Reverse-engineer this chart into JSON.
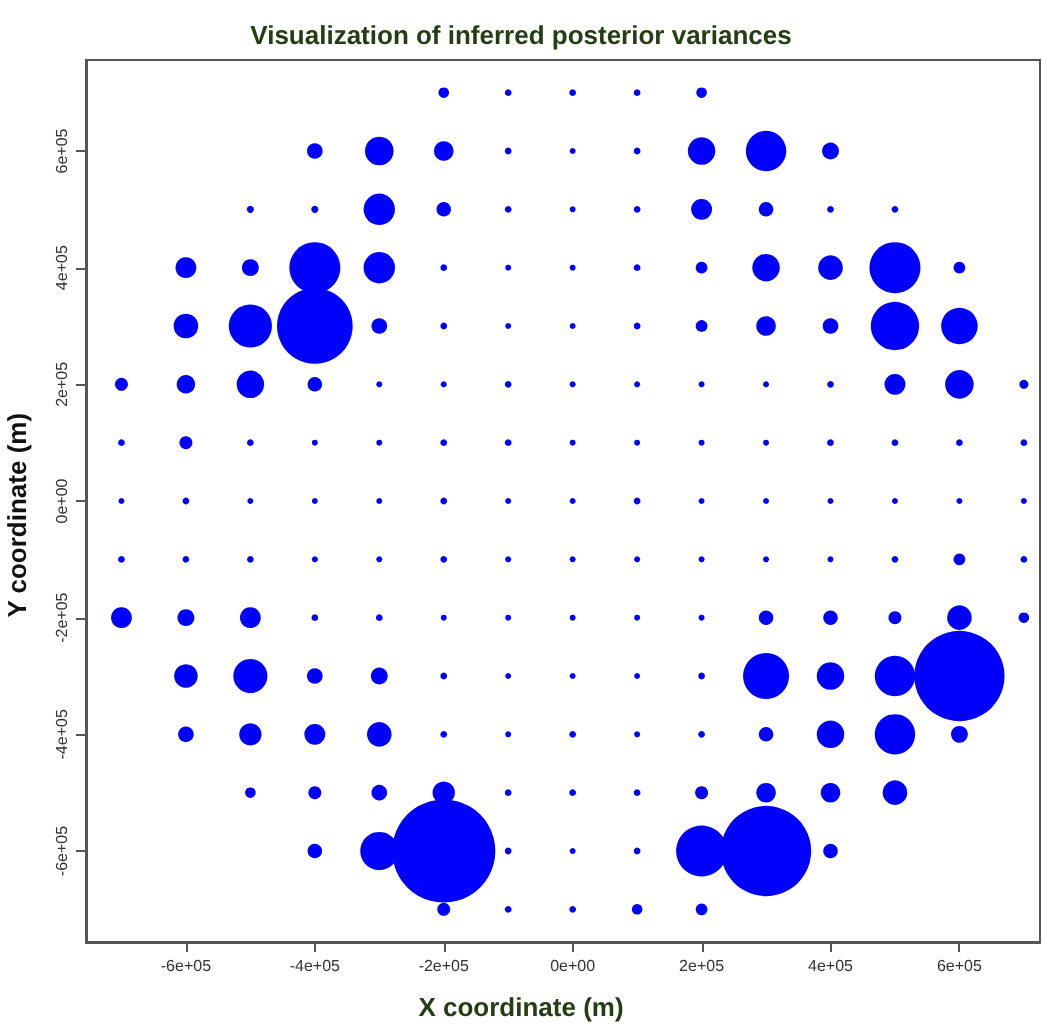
{
  "chart_data": {
    "type": "bubble",
    "title": "Visualization of inferred posterior variances",
    "xlabel": "X coordinate (m)",
    "ylabel": "Y coordinate (m)",
    "xlim": [
      -755000,
      725000
    ],
    "ylim": [
      -756000,
      756000
    ],
    "xticks": [
      {
        "value": -600000,
        "label": "-6e+05"
      },
      {
        "value": -400000,
        "label": "-4e+05"
      },
      {
        "value": -200000,
        "label": "-2e+05"
      },
      {
        "value": 0,
        "label": "0e+00"
      },
      {
        "value": 200000,
        "label": "2e+05"
      },
      {
        "value": 400000,
        "label": "4e+05"
      },
      {
        "value": 600000,
        "label": "6e+05"
      }
    ],
    "yticks": [
      {
        "value": -600000,
        "label": "-6e+05"
      },
      {
        "value": -400000,
        "label": "-4e+05"
      },
      {
        "value": -200000,
        "label": "-2e+05"
      },
      {
        "value": 0,
        "label": "0e+00"
      },
      {
        "value": 200000,
        "label": "2e+05"
      },
      {
        "value": 400000,
        "label": "4e+05"
      },
      {
        "value": 600000,
        "label": "6e+05"
      }
    ],
    "marker": "circle",
    "series": [
      {
        "color": "#0000ff",
        "x": [
          -200000,
          -100000,
          0,
          100000,
          200000,
          -400000,
          -300000,
          -200000,
          -100000,
          0,
          100000,
          200000,
          300000,
          400000,
          -500000,
          -400000,
          -300000,
          -200000,
          -100000,
          0,
          100000,
          200000,
          300000,
          400000,
          500000,
          -600000,
          -500000,
          -400000,
          -300000,
          -200000,
          -100000,
          0,
          100000,
          200000,
          300000,
          400000,
          500000,
          600000,
          -600000,
          -500000,
          -400000,
          -300000,
          -200000,
          -100000,
          0,
          100000,
          200000,
          300000,
          400000,
          500000,
          600000,
          -700000,
          -600000,
          -500000,
          -400000,
          -300000,
          -200000,
          -100000,
          0,
          100000,
          200000,
          300000,
          400000,
          500000,
          600000,
          700000,
          -700000,
          -600000,
          -500000,
          -400000,
          -300000,
          -200000,
          -100000,
          0,
          100000,
          200000,
          300000,
          400000,
          500000,
          600000,
          700000,
          -700000,
          -600000,
          -500000,
          -400000,
          -300000,
          -200000,
          -100000,
          0,
          100000,
          200000,
          300000,
          400000,
          500000,
          600000,
          700000,
          -700000,
          -600000,
          -500000,
          -400000,
          -300000,
          -200000,
          -100000,
          0,
          100000,
          200000,
          300000,
          400000,
          500000,
          600000,
          700000,
          -700000,
          -600000,
          -500000,
          -400000,
          -300000,
          -200000,
          -100000,
          0,
          100000,
          200000,
          300000,
          400000,
          500000,
          600000,
          700000,
          -600000,
          -500000,
          -400000,
          -300000,
          -200000,
          -100000,
          0,
          100000,
          200000,
          300000,
          400000,
          500000,
          600000,
          -600000,
          -500000,
          -400000,
          -300000,
          -200000,
          -100000,
          0,
          100000,
          200000,
          300000,
          400000,
          500000,
          600000,
          -500000,
          -400000,
          -300000,
          -200000,
          -100000,
          0,
          100000,
          200000,
          300000,
          400000,
          500000,
          -400000,
          -300000,
          -200000,
          -100000,
          0,
          100000,
          200000,
          300000,
          400000,
          -200000,
          -100000,
          0,
          100000,
          200000
        ],
        "values": [
          700000,
          700000,
          700000,
          700000,
          700000,
          600000,
          600000,
          600000,
          600000,
          600000,
          600000,
          600000,
          600000,
          600000,
          500000,
          500000,
          500000,
          500000,
          500000,
          500000,
          500000,
          500000,
          500000,
          500000,
          500000,
          400000,
          400000,
          400000,
          400000,
          400000,
          400000,
          400000,
          400000,
          400000,
          400000,
          400000,
          400000,
          400000,
          300000,
          300000,
          300000,
          300000,
          300000,
          300000,
          300000,
          300000,
          300000,
          300000,
          300000,
          300000,
          300000,
          200000,
          200000,
          200000,
          200000,
          200000,
          200000,
          200000,
          200000,
          200000,
          200000,
          200000,
          200000,
          200000,
          200000,
          200000,
          100000,
          100000,
          100000,
          100000,
          100000,
          100000,
          100000,
          100000,
          100000,
          100000,
          100000,
          100000,
          100000,
          100000,
          100000,
          0,
          0,
          0,
          0,
          0,
          0,
          0,
          0,
          0,
          0,
          0,
          0,
          0,
          0,
          0,
          -100000,
          -100000,
          -100000,
          -100000,
          -100000,
          -100000,
          -100000,
          -100000,
          -100000,
          -100000,
          -100000,
          -100000,
          -100000,
          -100000,
          -100000,
          -200000,
          -200000,
          -200000,
          -200000,
          -200000,
          -200000,
          -200000,
          -200000,
          -200000,
          -200000,
          -200000,
          -200000,
          -200000,
          -200000,
          -200000,
          -300000,
          -300000,
          -300000,
          -300000,
          -300000,
          -300000,
          -300000,
          -300000,
          -300000,
          -300000,
          -300000,
          -300000,
          -300000,
          -400000,
          -400000,
          -400000,
          -400000,
          -400000,
          -400000,
          -400000,
          -400000,
          -400000,
          -400000,
          -400000,
          -400000,
          -400000,
          -500000,
          -500000,
          -500000,
          -500000,
          -500000,
          -500000,
          -500000,
          -500000,
          -500000,
          -500000,
          -500000,
          -600000,
          -600000,
          -600000,
          -600000,
          -600000,
          -600000,
          -600000,
          -600000,
          -600000,
          -700000,
          -700000,
          -700000,
          -700000,
          -700000
        ],
        "sizes": [
          0.0105,
          0.0042,
          0.0042,
          0.0042,
          0.0105,
          0.023,
          0.077,
          0.036,
          0.0042,
          0.0033,
          0.0042,
          0.071,
          0.153,
          0.0267,
          0.0047,
          0.0047,
          0.093,
          0.0198,
          0.0042,
          0.0033,
          0.0042,
          0.041,
          0.0198,
          0.0042,
          0.0042,
          0.041,
          0.0267,
          0.244,
          0.093,
          0.0042,
          0.0033,
          0.0033,
          0.0042,
          0.013,
          0.071,
          0.057,
          0.244,
          0.013,
          0.057,
          0.175,
          0.538,
          0.023,
          0.0042,
          0.0033,
          0.0033,
          0.0042,
          0.013,
          0.036,
          0.023,
          0.219,
          0.125,
          0.0157,
          0.032,
          0.071,
          0.0198,
          0.0033,
          0.0033,
          0.0042,
          0.0033,
          0.0033,
          0.0033,
          0.0033,
          0.0042,
          0.041,
          0.077,
          0.0076,
          0.0042,
          0.0157,
          0.0042,
          0.0033,
          0.0033,
          0.0042,
          0.0042,
          0.0033,
          0.0033,
          0.0033,
          0.0033,
          0.0042,
          0.0042,
          0.0042,
          0.0042,
          0.0033,
          0.0042,
          0.0033,
          0.0033,
          0.0033,
          0.0042,
          0.0033,
          0.0033,
          0.0042,
          0.0033,
          0.0033,
          0.0033,
          0.0033,
          0.0033,
          0.0033,
          0.0042,
          0.0042,
          0.0042,
          0.0033,
          0.0033,
          0.0042,
          0.0033,
          0.0033,
          0.0033,
          0.0033,
          0.0033,
          0.0033,
          0.0042,
          0.013,
          0.0042,
          0.041,
          0.0267,
          0.041,
          0.0042,
          0.0042,
          0.0033,
          0.0033,
          0.0033,
          0.0033,
          0.0033,
          0.0198,
          0.0198,
          0.0157,
          0.057,
          0.0105,
          0.052,
          0.109,
          0.023,
          0.0267,
          0.0042,
          0.0033,
          0.0033,
          0.0033,
          0.0042,
          0.198,
          0.071,
          0.153,
          0.765,
          0.023,
          0.047,
          0.041,
          0.057,
          0.0042,
          0.0033,
          0.0042,
          0.0033,
          0.0042,
          0.0198,
          0.071,
          0.153,
          0.0267,
          0.0105,
          0.0157,
          0.023,
          0.047,
          0.0042,
          0.0042,
          0.0042,
          0.0157,
          0.036,
          0.036,
          0.057,
          0.0198,
          0.136,
          1,
          0.0042,
          0.0033,
          0.0042,
          0.244,
          0.765,
          0.0198,
          0.0157,
          0.0042,
          0.0042,
          0.0105,
          0.013
        ]
      }
    ]
  }
}
